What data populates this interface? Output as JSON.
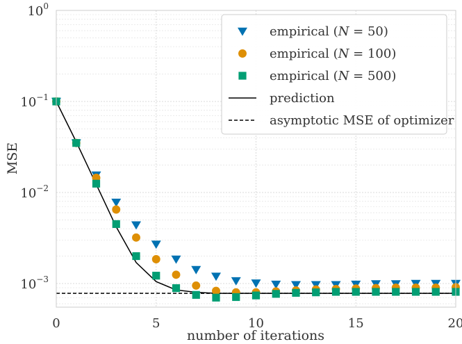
{
  "chart_data": {
    "type": "scatter",
    "title": "",
    "xlabel": "number of iterations",
    "ylabel": "MSE",
    "xlim": [
      0,
      20
    ],
    "ylim": [
      0.00055,
      1
    ],
    "yscale": "log",
    "grid": "major and minor",
    "legend_position": "top-right",
    "x_ticks": [
      {
        "value": 0,
        "label": "0"
      },
      {
        "value": 5,
        "label": "5"
      },
      {
        "value": 10,
        "label": "10"
      },
      {
        "value": 15,
        "label": "15"
      },
      {
        "value": 20,
        "label": "20"
      }
    ],
    "y_ticks": [
      {
        "value": 0.001,
        "base": "10",
        "exp": "−3"
      },
      {
        "value": 0.01,
        "base": "10",
        "exp": "−2"
      },
      {
        "value": 0.1,
        "base": "10",
        "exp": "−1"
      },
      {
        "value": 1,
        "base": "10",
        "exp": "0"
      }
    ],
    "series": [
      {
        "name": "empirical (N = 50)",
        "marker": "triangle-down",
        "color": "#0072b2",
        "x": [
          0,
          1,
          2,
          3,
          4,
          5,
          6,
          7,
          8,
          9,
          10,
          11,
          12,
          13,
          14,
          15,
          16,
          17,
          18,
          19,
          20
        ],
        "y": [
          0.1,
          0.035,
          0.0155,
          0.0078,
          0.0044,
          0.0027,
          0.00185,
          0.00142,
          0.0012,
          0.00107,
          0.00101,
          0.00098,
          0.00097,
          0.00097,
          0.00097,
          0.00098,
          0.00099,
          0.00099,
          0.001,
          0.001,
          0.001
        ]
      },
      {
        "name": "empirical (N = 100)",
        "marker": "circle",
        "color": "#de8f05",
        "x": [
          0,
          1,
          2,
          3,
          4,
          5,
          6,
          7,
          8,
          9,
          10,
          11,
          12,
          13,
          14,
          15,
          16,
          17,
          18,
          19,
          20
        ],
        "y": [
          0.1,
          0.035,
          0.0145,
          0.0065,
          0.0032,
          0.00185,
          0.00125,
          0.00095,
          0.00083,
          0.0008,
          0.0008,
          0.00082,
          0.00084,
          0.00086,
          0.00087,
          0.00088,
          0.00089,
          0.0009,
          0.0009,
          0.0009,
          0.00091
        ]
      },
      {
        "name": "empirical (N = 500)",
        "marker": "square",
        "color": "#029e73",
        "x": [
          0,
          1,
          2,
          3,
          4,
          5,
          6,
          7,
          8,
          9,
          10,
          11,
          12,
          13,
          14,
          15,
          16,
          17,
          18,
          19,
          20
        ],
        "y": [
          0.1,
          0.035,
          0.0125,
          0.0045,
          0.002,
          0.00122,
          0.00089,
          0.00075,
          0.0007,
          0.00071,
          0.00074,
          0.00077,
          0.00079,
          0.0008,
          0.00081,
          0.00081,
          0.00081,
          0.00081,
          0.00081,
          0.00081,
          0.00081
        ]
      },
      {
        "name": "prediction",
        "marker": "line",
        "color": "#000000",
        "x": [
          0,
          1,
          2,
          3,
          4,
          5,
          6,
          7,
          8,
          9,
          10,
          11,
          12,
          13,
          14,
          15,
          16,
          17,
          18,
          19,
          20
        ],
        "y": [
          0.1,
          0.036,
          0.0123,
          0.0042,
          0.0017,
          0.00105,
          0.00085,
          0.0008,
          0.00078,
          0.00078,
          0.00078,
          0.00078,
          0.00078,
          0.00078,
          0.00078,
          0.00078,
          0.00078,
          0.00078,
          0.00078,
          0.00078,
          0.00078
        ]
      },
      {
        "name": "asymptotic MSE of optimizer",
        "marker": "dashed",
        "color": "#000000",
        "x": [
          0,
          20
        ],
        "y": [
          0.00078,
          0.00078
        ]
      }
    ],
    "legend": [
      {
        "prefix": "empirical (",
        "var": "N",
        "mid": " = ",
        "num": "50",
        "suffix": ")"
      },
      {
        "prefix": "empirical (",
        "var": "N",
        "mid": " = ",
        "num": "100",
        "suffix": ")"
      },
      {
        "prefix": "empirical (",
        "var": "N",
        "mid": " = ",
        "num": "500",
        "suffix": ")"
      },
      {
        "text": "prediction"
      },
      {
        "text": "asymptotic MSE of optimizer"
      }
    ]
  }
}
